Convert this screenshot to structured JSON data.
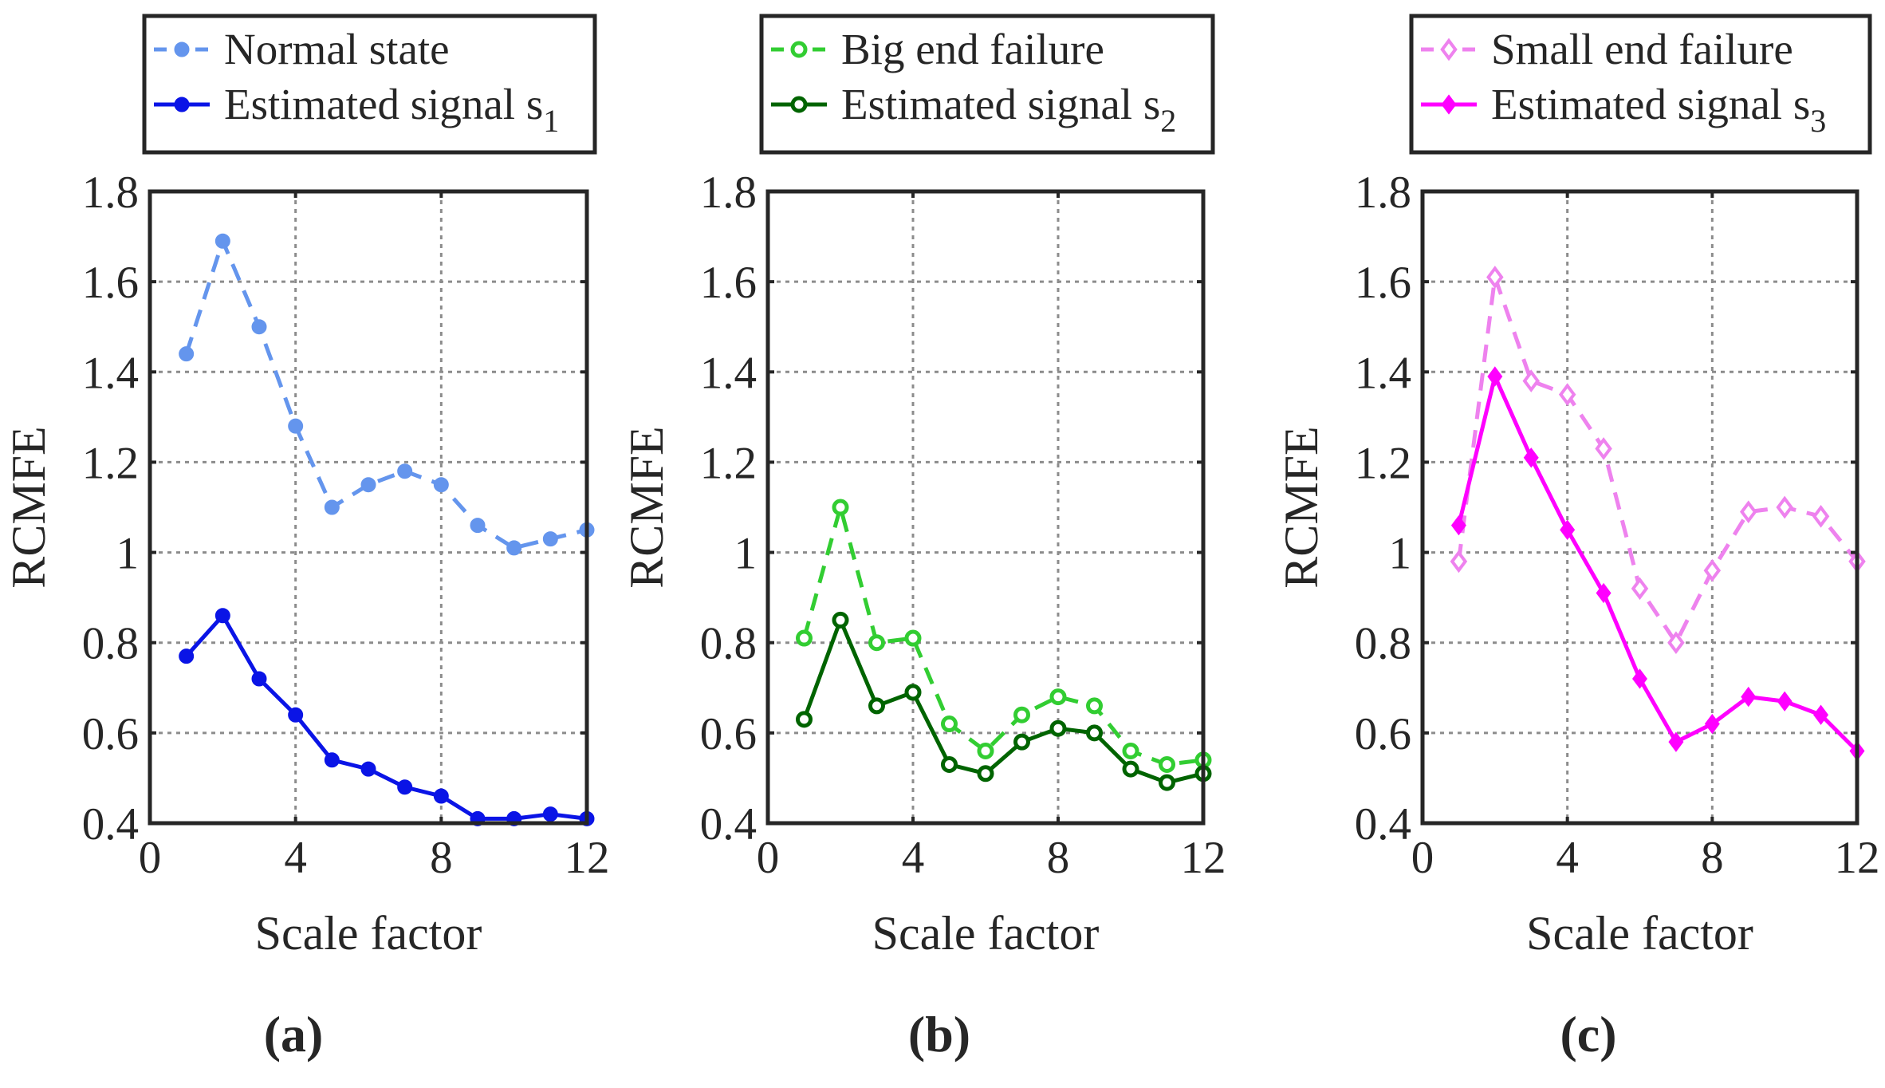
{
  "chart_data": [
    {
      "type": "line",
      "panel_label": "(a)",
      "xlabel": "Scale factor",
      "ylabel": "RCMFE",
      "xlim": [
        0,
        12
      ],
      "ylim": [
        0.4,
        1.8
      ],
      "xticks": [
        0,
        4,
        8,
        12
      ],
      "xtick_labels": [
        "0",
        "4",
        "8",
        "12"
      ],
      "yticks": [
        0.4,
        0.6,
        0.8,
        1.0,
        1.2,
        1.4,
        1.6,
        1.8
      ],
      "ytick_labels": [
        "0.4",
        "0.6",
        "0.8",
        "1",
        "1.2",
        "1.4",
        "1.6",
        "1.8"
      ],
      "grid": true,
      "legend_position": "above",
      "series": [
        {
          "name": "Normal state",
          "style": "dashed",
          "marker": "filled-circle",
          "color": "#6495ED",
          "x": [
            1,
            2,
            3,
            4,
            5,
            6,
            7,
            8,
            9,
            10,
            11,
            12
          ],
          "values": [
            1.44,
            1.69,
            1.5,
            1.28,
            1.1,
            1.15,
            1.18,
            1.15,
            1.06,
            1.01,
            1.03,
            1.05
          ]
        },
        {
          "name": "Estimated signal s",
          "subscript": "1",
          "style": "solid",
          "marker": "filled-circle",
          "color": "#0A14E6",
          "x": [
            1,
            2,
            3,
            4,
            5,
            6,
            7,
            8,
            9,
            10,
            11,
            12
          ],
          "values": [
            0.77,
            0.86,
            0.72,
            0.64,
            0.54,
            0.52,
            0.48,
            0.46,
            0.41,
            0.41,
            0.42,
            0.41
          ]
        }
      ]
    },
    {
      "type": "line",
      "panel_label": "(b)",
      "xlabel": "Scale factor",
      "ylabel": "RCMFE",
      "xlim": [
        0,
        12
      ],
      "ylim": [
        0.4,
        1.8
      ],
      "xticks": [
        0,
        4,
        8,
        12
      ],
      "xtick_labels": [
        "0",
        "4",
        "8",
        "12"
      ],
      "yticks": [
        0.4,
        0.6,
        0.8,
        1.0,
        1.2,
        1.4,
        1.6,
        1.8
      ],
      "ytick_labels": [
        "0.4",
        "0.6",
        "0.8",
        "1",
        "1.2",
        "1.4",
        "1.6",
        "1.8"
      ],
      "grid": true,
      "legend_position": "above",
      "series": [
        {
          "name": "Big end failure",
          "style": "dashed",
          "marker": "open-circle",
          "color": "#32CD32",
          "x": [
            1,
            2,
            3,
            4,
            5,
            6,
            7,
            8,
            9,
            10,
            11,
            12
          ],
          "values": [
            0.81,
            1.1,
            0.8,
            0.81,
            0.62,
            0.56,
            0.64,
            0.68,
            0.66,
            0.56,
            0.53,
            0.54
          ]
        },
        {
          "name": "Estimated signal s",
          "subscript": "2",
          "style": "solid",
          "marker": "open-circle",
          "color": "#006400",
          "x": [
            1,
            2,
            3,
            4,
            5,
            6,
            7,
            8,
            9,
            10,
            11,
            12
          ],
          "values": [
            0.63,
            0.85,
            0.66,
            0.69,
            0.53,
            0.51,
            0.58,
            0.61,
            0.6,
            0.52,
            0.49,
            0.51
          ]
        }
      ]
    },
    {
      "type": "line",
      "panel_label": "(c)",
      "xlabel": "Scale factor",
      "ylabel": "RCMFE",
      "xlim": [
        0,
        12
      ],
      "ylim": [
        0.4,
        1.8
      ],
      "xticks": [
        0,
        4,
        8,
        12
      ],
      "xtick_labels": [
        "0",
        "4",
        "8",
        "12"
      ],
      "yticks": [
        0.4,
        0.6,
        0.8,
        1.0,
        1.2,
        1.4,
        1.6,
        1.8
      ],
      "ytick_labels": [
        "0.4",
        "0.6",
        "0.8",
        "1",
        "1.2",
        "1.4",
        "1.6",
        "1.8"
      ],
      "grid": true,
      "legend_position": "above",
      "series": [
        {
          "name": "Small end failure",
          "style": "dashed",
          "marker": "open-diamond",
          "color": "#EE82EE",
          "x": [
            1,
            2,
            3,
            4,
            5,
            6,
            7,
            8,
            9,
            10,
            11,
            12
          ],
          "values": [
            0.98,
            1.61,
            1.38,
            1.35,
            1.23,
            0.92,
            0.8,
            0.96,
            1.09,
            1.1,
            1.08,
            0.98
          ]
        },
        {
          "name": "Estimated signal s",
          "subscript": "3",
          "style": "solid",
          "marker": "filled-diamond",
          "color": "#FF00FF",
          "x": [
            1,
            2,
            3,
            4,
            5,
            6,
            7,
            8,
            9,
            10,
            11,
            12
          ],
          "values": [
            1.06,
            1.39,
            1.21,
            1.05,
            0.91,
            0.72,
            0.58,
            0.62,
            0.68,
            0.67,
            0.64,
            0.56
          ]
        }
      ]
    }
  ]
}
